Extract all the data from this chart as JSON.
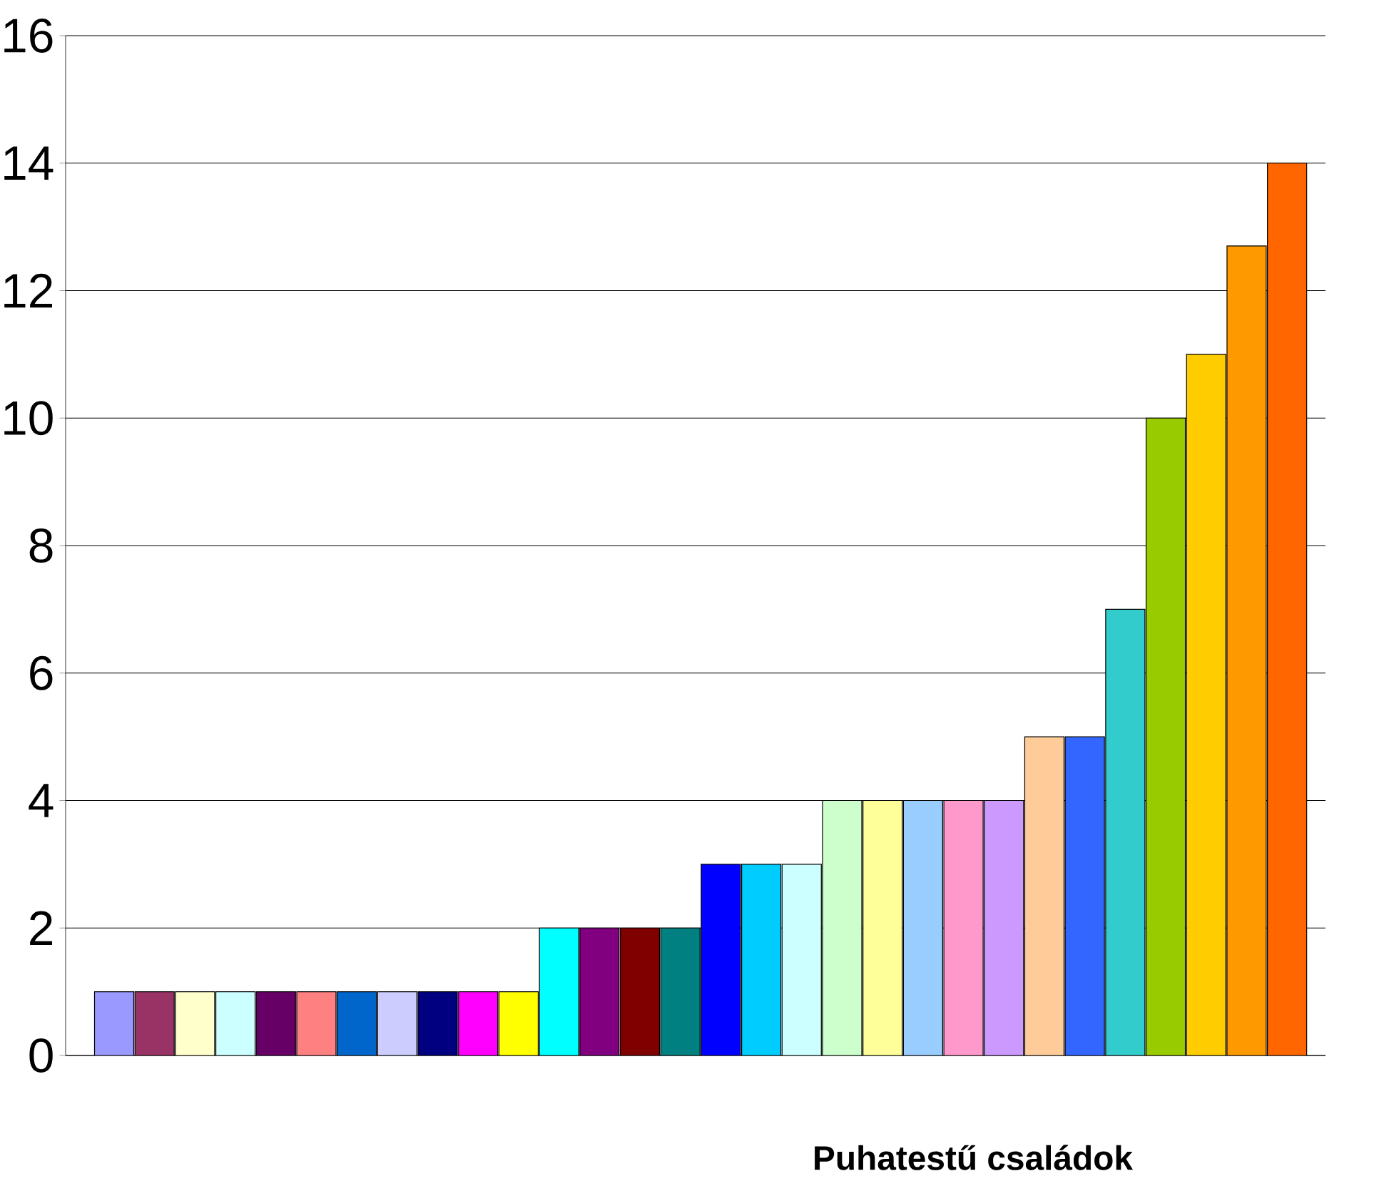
{
  "chart_data": {
    "type": "bar",
    "xlabel": "Puhatestű családok",
    "categories": [
      null,
      null,
      null,
      null,
      null,
      null,
      null,
      null,
      null,
      null,
      null,
      null,
      null,
      null,
      null,
      null,
      null,
      null,
      null,
      null,
      null,
      null,
      null,
      null,
      null,
      null,
      null,
      null,
      null,
      null
    ],
    "values": [
      1,
      1,
      1,
      1,
      1,
      1,
      1,
      1,
      1,
      1,
      1,
      2,
      2,
      2,
      2,
      3,
      3,
      3,
      4,
      4,
      4,
      4,
      4,
      5,
      5,
      7,
      10,
      11,
      12.7,
      14
    ],
    "colors": [
      "#9999ff",
      "#993366",
      "#ffffcc",
      "#ccffff",
      "#660066",
      "#ff8080",
      "#0066cc",
      "#ccccff",
      "#000080",
      "#ff00ff",
      "#ffff00",
      "#00ffff",
      "#800080",
      "#800000",
      "#008080",
      "#0000ff",
      "#00ccff",
      "#ccffff",
      "#ccffcc",
      "#ffff99",
      "#99ccff",
      "#ff99cc",
      "#cc99ff",
      "#ffcc99",
      "#3366ff",
      "#33cccc",
      "#99cc00",
      "#ffcc00",
      "#ff9900",
      "#ff6600"
    ],
    "ylim": [
      0,
      16
    ],
    "yticks": [
      0,
      2,
      4,
      6,
      8,
      10,
      12,
      14,
      16
    ],
    "grid": "y"
  }
}
